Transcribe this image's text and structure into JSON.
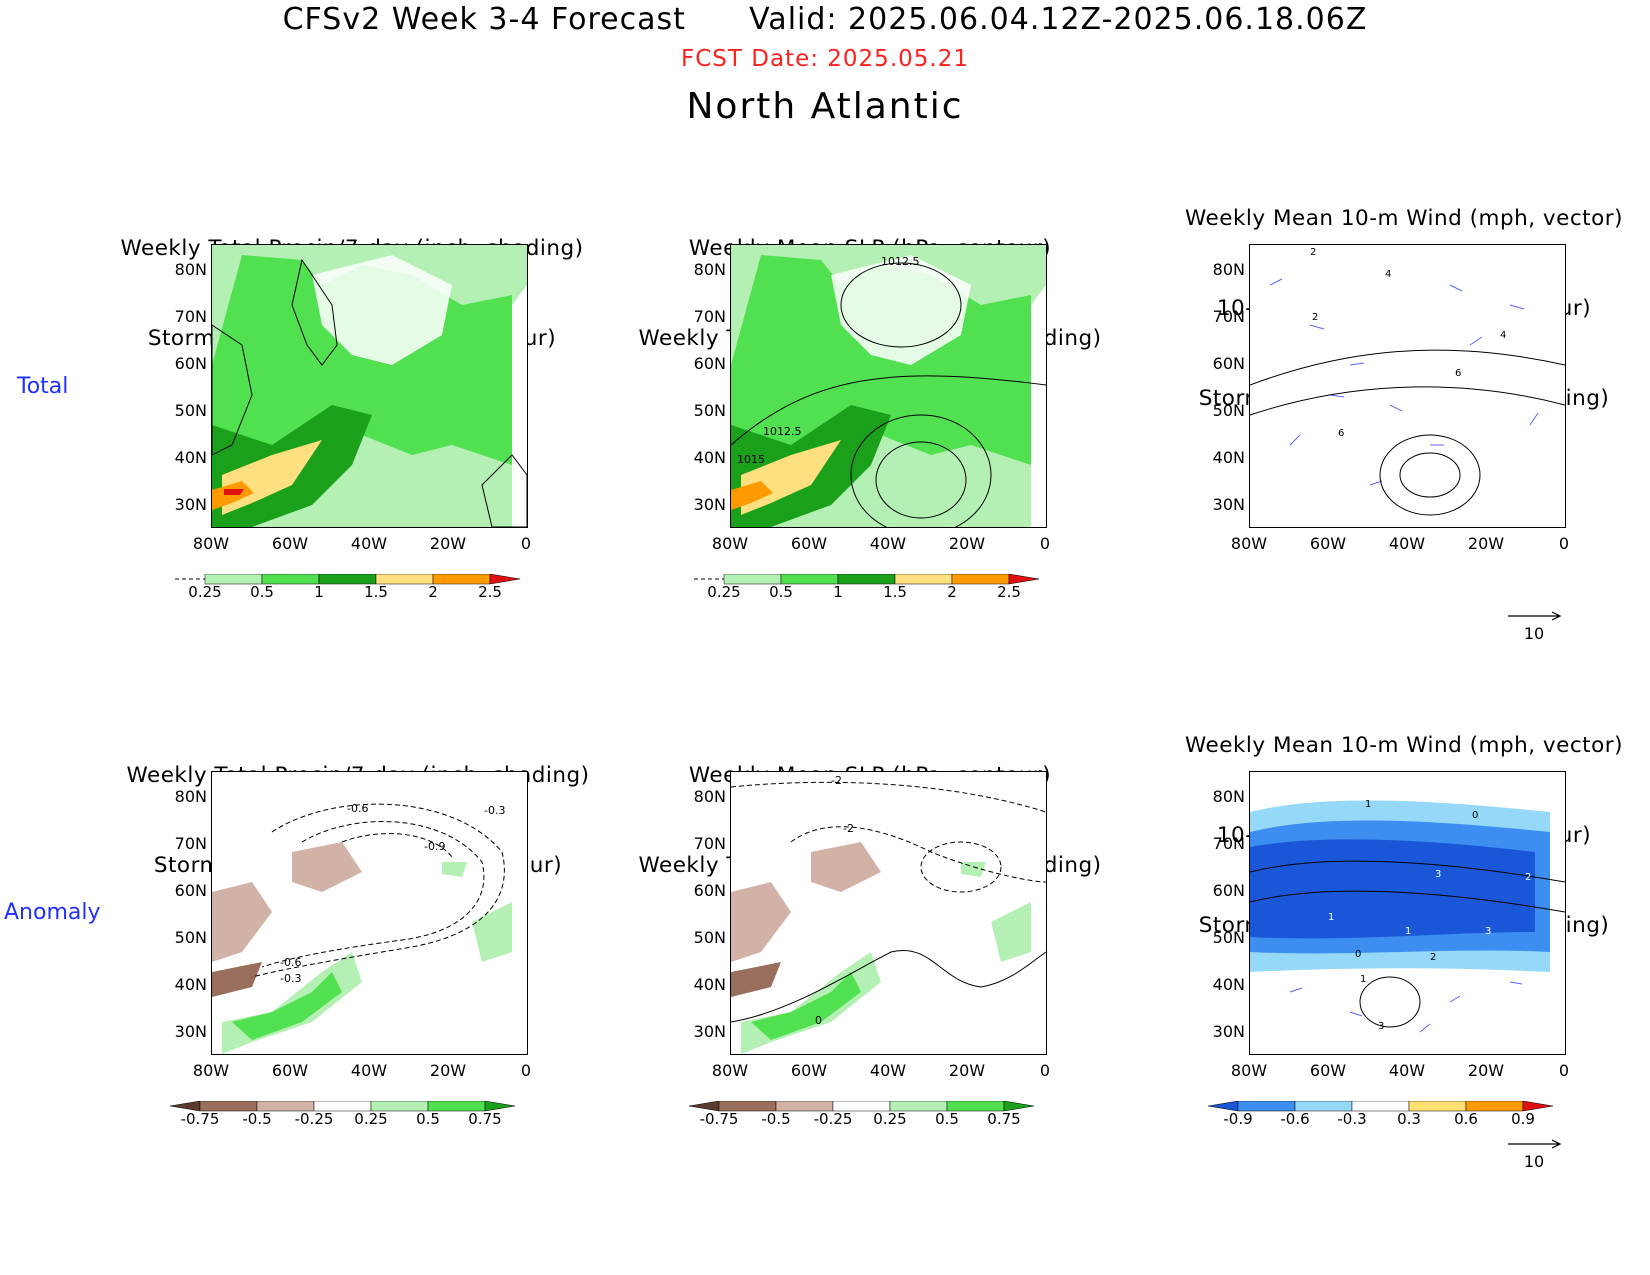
{
  "header": {
    "title": "CFSv2 Week 3-4 Forecast      Valid: 2025.06.04.12Z-2025.06.18.06Z",
    "fcst_date": "FCST Date: 2025.05.21",
    "region": "North Atlantic"
  },
  "rows": {
    "total": "Total",
    "anomaly": "Anomaly"
  },
  "panels": {
    "precip_track": {
      "line1": "Weekly Total Precip/7-day (inch, shading)",
      "line2": "Storm Track Density/7-day (contour)"
    },
    "slp_precip": {
      "line1": "Weekly Mean SLP (hPa, contour)",
      "line2": "Weekly Total Precip/7-day (inch, shading)"
    },
    "wind_track": {
      "line1": "Weekly Mean 10-m Wind (mph, vector)",
      "line2": "10-m Wind Speed (mph, contour)",
      "line3": "Storm Track Density/7-day (shading)"
    }
  },
  "axes": {
    "lat": [
      "80N",
      "70N",
      "60N",
      "50N",
      "40N",
      "30N"
    ],
    "lon": [
      "80W",
      "60W",
      "40W",
      "20W",
      "0"
    ]
  },
  "contour_labels": {
    "slp_total": [
      "1012.5",
      "1012.5",
      "1015"
    ],
    "precip_anom": [
      "-0.6",
      "-0.3",
      "-0.9",
      "-0.6",
      "-0.3"
    ],
    "slp_anom": [
      "-2",
      "-2",
      "0"
    ],
    "wind_total": [
      "2",
      "4",
      "2",
      "4",
      "6",
      "6"
    ],
    "wind_anom": [
      "1",
      "0",
      "3",
      "2",
      "1",
      "1",
      "3",
      "0",
      "2",
      "1",
      "3"
    ]
  },
  "colorbars": {
    "precip_total": {
      "ticks": [
        "0.25",
        "0.5",
        "1",
        "1.5",
        "2",
        "2.5"
      ],
      "colors": [
        "#b4f0b4",
        "#50e050",
        "#1aa01a",
        "#ffe080",
        "#ff9a00",
        "#e01010"
      ]
    },
    "precip_anom": {
      "ticks": [
        "-0.75",
        "-0.5",
        "-0.25",
        "0.25",
        "0.5",
        "0.75"
      ],
      "colors": [
        "#5a3a2c",
        "#9a6e5c",
        "#d2b2a6",
        "#ffffff",
        "#b4f0b4",
        "#50e050",
        "#1aa01a"
      ]
    },
    "track_anom": {
      "ticks": [
        "-0.9",
        "-0.6",
        "-0.3",
        "0.3",
        "0.6",
        "0.9"
      ],
      "colors": [
        "#1a56d8",
        "#3c8ef0",
        "#96d8f8",
        "#ffffff",
        "#ffe070",
        "#ff9a00",
        "#e01010"
      ]
    }
  },
  "vector_ref": {
    "value": "10"
  }
}
